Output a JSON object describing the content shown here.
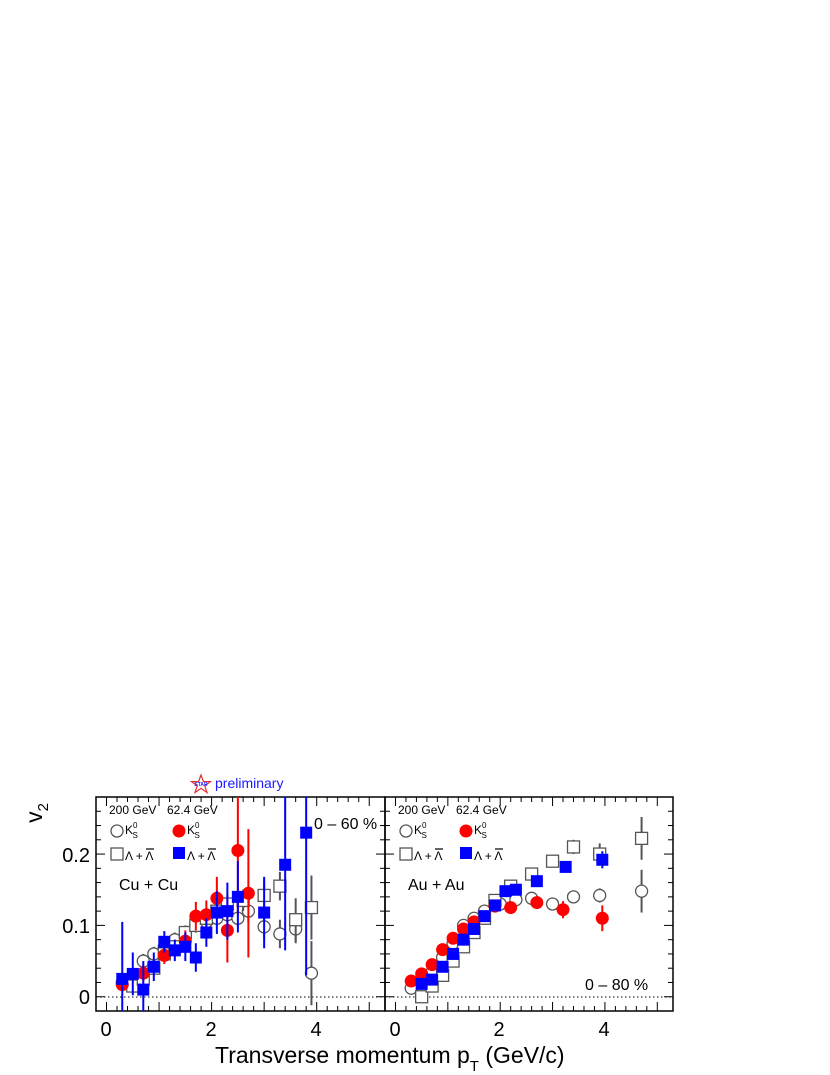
{
  "chart_data": {
    "type": "scatter",
    "xlabel_main": "Transverse momentum p",
    "xlabel_sub": "T",
    "xlabel_unit": " (GeV/c)",
    "ylabel_main": "v",
    "ylabel_sub": "2",
    "xlim": [
      -0.2,
      5.3
    ],
    "ylim": [
      -0.02,
      0.28
    ],
    "x_ticks": [
      "0",
      "2",
      "4"
    ],
    "y_ticks": [
      "0",
      "0.1",
      "0.2"
    ],
    "preliminary_logo": "STAR",
    "preliminary_text": "preliminary",
    "energy_labels": [
      "200 GeV",
      "62.4 GeV"
    ],
    "kaon_label": "K",
    "kaon_sup": "0",
    "kaon_sub": "S",
    "lambda_label": "Λ + Λ",
    "colors": {
      "open_marker": "#555555",
      "kaon_624": "#ff0000",
      "lambda_624": "#0000ff",
      "star": "#1a1aff"
    },
    "panels": [
      {
        "system": "Cu + Cu",
        "centrality": "0 – 60 %",
        "series": [
          {
            "style": "open-circle",
            "points": [
              [
                0.3,
                0.02,
                0.01
              ],
              [
                0.5,
                0.03,
                0.01
              ],
              [
                0.7,
                0.05,
                0.01
              ],
              [
                0.9,
                0.06,
                0.01
              ],
              [
                1.1,
                0.07,
                0.01
              ],
              [
                1.3,
                0.08,
                0.01
              ],
              [
                1.5,
                0.085,
                0.01
              ],
              [
                1.7,
                0.1,
                0.01
              ],
              [
                1.9,
                0.105,
                0.01
              ],
              [
                2.1,
                0.11,
                0.01
              ],
              [
                2.3,
                0.115,
                0.01
              ],
              [
                2.5,
                0.11,
                0.012
              ],
              [
                2.7,
                0.12,
                0.015
              ],
              [
                3.0,
                0.098,
                0.015
              ],
              [
                3.3,
                0.088,
                0.02
              ],
              [
                3.6,
                0.095,
                0.02
              ],
              [
                3.9,
                0.033,
                0.045
              ]
            ]
          },
          {
            "style": "open-square",
            "points": [
              [
                0.5,
                0.015,
                0.01
              ],
              [
                0.7,
                0.025,
                0.01
              ],
              [
                0.9,
                0.04,
                0.01
              ],
              [
                1.1,
                0.06,
                0.01
              ],
              [
                1.3,
                0.07,
                0.01
              ],
              [
                1.5,
                0.09,
                0.01
              ],
              [
                1.7,
                0.1,
                0.01
              ],
              [
                1.9,
                0.11,
                0.01
              ],
              [
                2.1,
                0.12,
                0.01
              ],
              [
                2.3,
                0.13,
                0.012
              ],
              [
                2.6,
                0.135,
                0.015
              ],
              [
                3.0,
                0.142,
                0.02
              ],
              [
                3.3,
                0.155,
                0.02
              ],
              [
                3.6,
                0.108,
                0.03
              ],
              [
                3.9,
                0.125,
                0.045
              ]
            ]
          },
          {
            "style": "filled-circle",
            "points": [
              [
                0.3,
                0.017,
                0.01
              ],
              [
                0.7,
                0.033,
                0.012
              ],
              [
                1.1,
                0.058,
                0.012
              ],
              [
                1.5,
                0.078,
                0.015
              ],
              [
                1.7,
                0.113,
                0.02
              ],
              [
                1.9,
                0.115,
                0.02
              ],
              [
                2.1,
                0.138,
                0.03
              ],
              [
                2.3,
                0.093,
                0.045
              ],
              [
                2.5,
                0.205,
                0.09
              ],
              [
                2.7,
                0.145,
                0.09
              ]
            ]
          },
          {
            "style": "filled-square",
            "points": [
              [
                0.3,
                0.025,
                0.08
              ],
              [
                0.5,
                0.032,
                0.03
              ],
              [
                0.7,
                0.01,
                0.04
              ],
              [
                0.9,
                0.042,
                0.02
              ],
              [
                1.1,
                0.077,
                0.015
              ],
              [
                1.3,
                0.065,
                0.015
              ],
              [
                1.5,
                0.07,
                0.02
              ],
              [
                1.7,
                0.055,
                0.02
              ],
              [
                1.9,
                0.09,
                0.02
              ],
              [
                2.1,
                0.118,
                0.03
              ],
              [
                2.3,
                0.12,
                0.04
              ],
              [
                2.5,
                0.14,
                0.05
              ],
              [
                3.0,
                0.118,
                0.05
              ],
              [
                3.4,
                0.185,
                0.12
              ],
              [
                3.8,
                0.23,
                0.2
              ]
            ]
          }
        ]
      },
      {
        "system": "Au + Au",
        "centrality": "0 – 80 %",
        "series": [
          {
            "style": "open-circle",
            "points": [
              [
                0.3,
                0.012,
                0.002
              ],
              [
                0.5,
                0.02,
                0.002
              ],
              [
                0.7,
                0.035,
                0.002
              ],
              [
                0.9,
                0.055,
                0.002
              ],
              [
                1.1,
                0.075,
                0.002
              ],
              [
                1.3,
                0.1,
                0.002
              ],
              [
                1.5,
                0.11,
                0.002
              ],
              [
                1.7,
                0.12,
                0.002
              ],
              [
                2.0,
                0.13,
                0.003
              ],
              [
                2.3,
                0.136,
                0.003
              ],
              [
                2.6,
                0.138,
                0.004
              ],
              [
                3.0,
                0.13,
                0.006
              ],
              [
                3.4,
                0.14,
                0.008
              ],
              [
                3.9,
                0.142,
                0.01
              ],
              [
                4.7,
                0.148,
                0.03
              ]
            ]
          },
          {
            "style": "open-square",
            "points": [
              [
                0.5,
                0.0,
                0.005
              ],
              [
                0.7,
                0.015,
                0.004
              ],
              [
                0.9,
                0.03,
                0.003
              ],
              [
                1.1,
                0.05,
                0.003
              ],
              [
                1.3,
                0.07,
                0.003
              ],
              [
                1.5,
                0.09,
                0.003
              ],
              [
                1.7,
                0.11,
                0.003
              ],
              [
                1.9,
                0.135,
                0.004
              ],
              [
                2.2,
                0.155,
                0.005
              ],
              [
                2.6,
                0.172,
                0.006
              ],
              [
                3.0,
                0.19,
                0.008
              ],
              [
                3.4,
                0.21,
                0.01
              ],
              [
                3.9,
                0.2,
                0.015
              ],
              [
                4.7,
                0.222,
                0.03
              ]
            ]
          },
          {
            "style": "filled-circle",
            "points": [
              [
                0.3,
                0.022,
                0.003
              ],
              [
                0.5,
                0.032,
                0.003
              ],
              [
                0.7,
                0.045,
                0.003
              ],
              [
                0.9,
                0.066,
                0.003
              ],
              [
                1.1,
                0.082,
                0.003
              ],
              [
                1.3,
                0.095,
                0.004
              ],
              [
                1.5,
                0.105,
                0.004
              ],
              [
                1.9,
                0.127,
                0.005
              ],
              [
                2.2,
                0.125,
                0.006
              ],
              [
                2.7,
                0.132,
                0.007
              ],
              [
                3.2,
                0.122,
                0.012
              ],
              [
                3.95,
                0.11,
                0.018
              ]
            ]
          },
          {
            "style": "filled-square",
            "points": [
              [
                0.5,
                0.018,
                0.004
              ],
              [
                0.7,
                0.024,
                0.004
              ],
              [
                0.9,
                0.042,
                0.003
              ],
              [
                1.1,
                0.06,
                0.003
              ],
              [
                1.3,
                0.08,
                0.003
              ],
              [
                1.5,
                0.095,
                0.003
              ],
              [
                1.7,
                0.113,
                0.004
              ],
              [
                1.9,
                0.128,
                0.004
              ],
              [
                2.1,
                0.148,
                0.005
              ],
              [
                2.3,
                0.15,
                0.005
              ],
              [
                2.7,
                0.162,
                0.006
              ],
              [
                3.25,
                0.182,
                0.007
              ],
              [
                3.95,
                0.192,
                0.012
              ]
            ]
          }
        ]
      }
    ]
  }
}
